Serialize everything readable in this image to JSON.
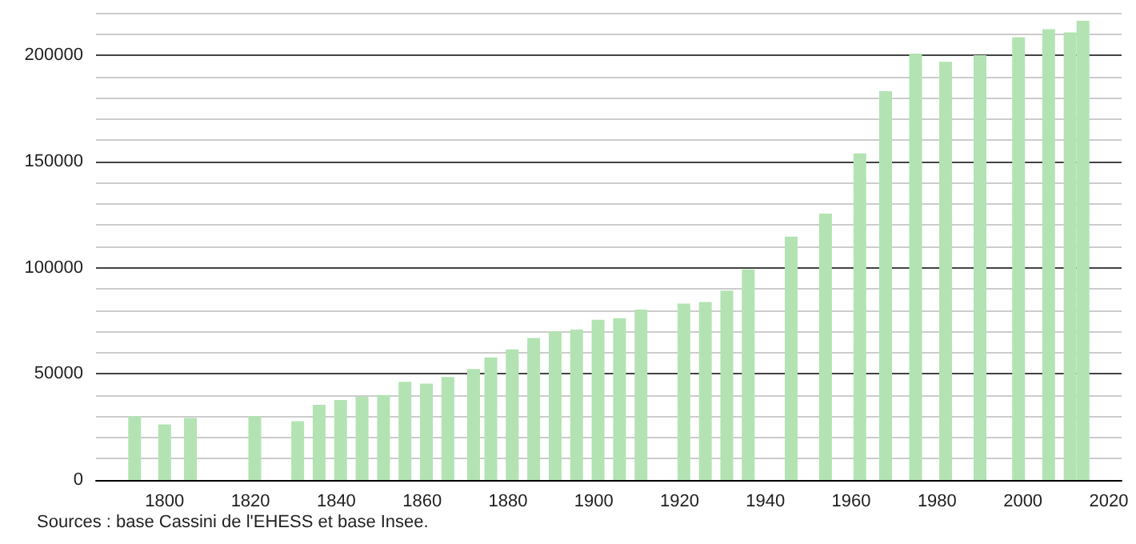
{
  "chart_data": {
    "type": "bar",
    "x": [
      1793,
      1800,
      1806,
      1821,
      1831,
      1836,
      1841,
      1846,
      1851,
      1856,
      1861,
      1866,
      1872,
      1876,
      1881,
      1886,
      1891,
      1896,
      1901,
      1906,
      1911,
      1921,
      1926,
      1931,
      1936,
      1946,
      1954,
      1962,
      1968,
      1975,
      1982,
      1990,
      1999,
      2006,
      2011,
      2014
    ],
    "values": [
      30000,
      26200,
      29200,
      30000,
      27700,
      35400,
      37700,
      39200,
      40000,
      46200,
      45400,
      48500,
      52300,
      57700,
      61500,
      66900,
      70000,
      70800,
      75400,
      76200,
      80200,
      83100,
      83800,
      89200,
      99200,
      114600,
      125400,
      153800,
      183100,
      200800,
      196900,
      200000,
      208500,
      212300,
      210800,
      216200
    ],
    "color": "#b3e3b3",
    "xlim": [
      1784,
      2023
    ],
    "xticks": [
      1800,
      1820,
      1840,
      1860,
      1880,
      1900,
      1920,
      1940,
      1960,
      1980,
      2000,
      2020
    ],
    "ylim": [
      0,
      220000
    ],
    "yticks": [
      0,
      {
        "value": 10000,
        "label": null
      },
      {
        "value": 20000,
        "label": null
      },
      {
        "value": 30000,
        "label": null
      },
      {
        "value": 40000,
        "label": null
      },
      50000,
      {
        "value": 60000,
        "label": null
      },
      {
        "value": 70000,
        "label": null
      },
      {
        "value": 80000,
        "label": null
      },
      {
        "value": 90000,
        "label": null
      },
      100000,
      {
        "value": 110000,
        "label": null
      },
      {
        "value": 120000,
        "label": null
      },
      {
        "value": 130000,
        "label": null
      },
      {
        "value": 140000,
        "label": null
      },
      150000,
      {
        "value": 160000,
        "label": null
      },
      {
        "value": 170000,
        "label": null
      },
      {
        "value": 180000,
        "label": null
      },
      {
        "value": 190000,
        "label": null
      },
      200000,
      {
        "value": 210000,
        "label": null
      },
      {
        "value": 220000,
        "label": null
      }
    ],
    "grid": "y",
    "annotations": [
      "Sources : base Cassini de l'EHESS et base Insee."
    ]
  }
}
